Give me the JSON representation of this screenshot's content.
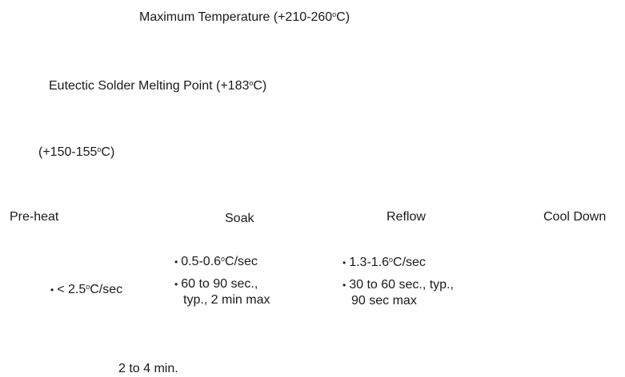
{
  "temperatures": {
    "max_label": "Maximum Temperature (+210-260",
    "max_unit": "C)",
    "eutectic_label": "Eutectic Solder Melting Point (+183",
    "eutectic_unit": "C)",
    "preheat_label": "(+150-155",
    "preheat_unit": "C)",
    "degree_symbol": "o"
  },
  "phases": {
    "preheat": "Pre-heat",
    "soak": "Soak",
    "reflow": "Reflow",
    "cool_down": "Cool Down"
  },
  "preheat_notes": {
    "rate_prefix": "< 2.5",
    "rate_suffix": "C/sec"
  },
  "soak_notes": {
    "rate_prefix": "0.5-0.6",
    "rate_suffix": "C/sec",
    "time_line1": "60 to 90 sec.,",
    "time_line2": "typ., 2 min max"
  },
  "reflow_notes": {
    "rate_prefix": "1.3-1.6",
    "rate_suffix": "C/sec",
    "time_line1": "30 to 60 sec., typ.,",
    "time_line2": "90 sec max"
  },
  "duration": "2 to 4 min."
}
